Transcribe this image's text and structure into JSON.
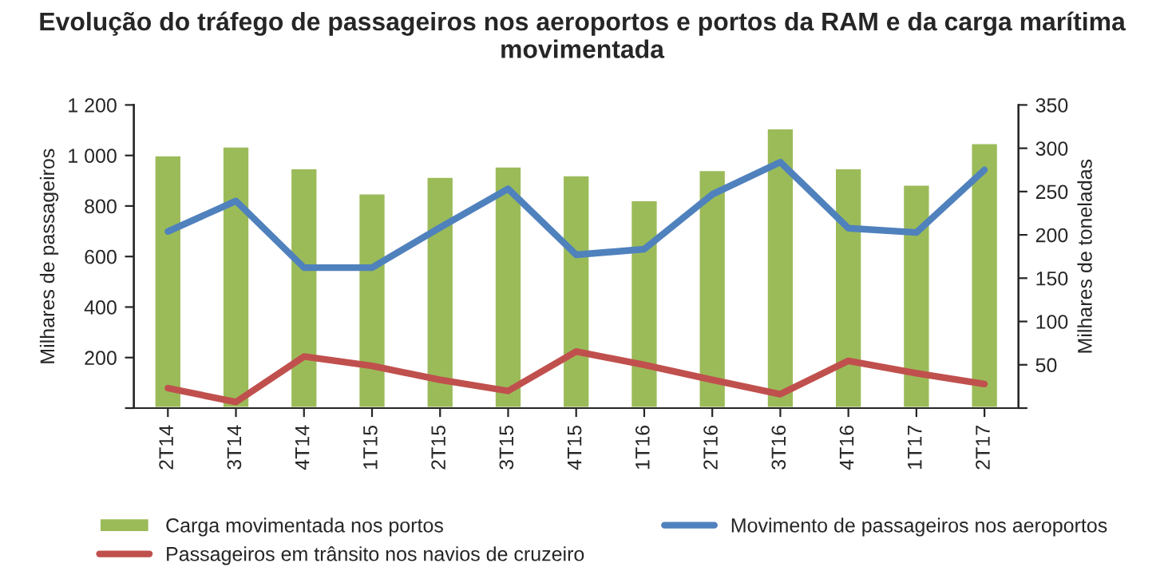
{
  "chart_data": {
    "type": "bar",
    "title": "Evolução do tráfego de passageiros nos aeroportos e portos da RAM e da carga marítima movimentada",
    "categories": [
      "2T14",
      "3T14",
      "4T14",
      "1T15",
      "2T15",
      "3T15",
      "4T15",
      "1T16",
      "2T16",
      "3T16",
      "4T16",
      "1T17",
      "2T17"
    ],
    "ylabel": "Milhares de passageiros",
    "y2label": "Milhares de toneladas",
    "ylim": [
      0,
      1200
    ],
    "yticks": [
      {
        "value": 0,
        "label": null
      },
      {
        "value": 200,
        "label": "200"
      },
      {
        "value": 400,
        "label": "400"
      },
      {
        "value": 600,
        "label": "600"
      },
      {
        "value": 800,
        "label": "800"
      },
      {
        "value": 1000,
        "label": "1 000"
      },
      {
        "value": 1200,
        "label": "1 200"
      }
    ],
    "y2lim": [
      0,
      350
    ],
    "y2ticks": [
      {
        "value": 0,
        "label": null
      },
      50,
      100,
      150,
      200,
      250,
      300,
      350
    ],
    "series": [
      {
        "name": "Carga movimentada nos portos",
        "axis": "y2",
        "color": "#9bbb59",
        "values": [
          292,
          302,
          277,
          248,
          267,
          279,
          269,
          240,
          275,
          323,
          277,
          258,
          306
        ]
      },
      {
        "name": "Movimento de passageiros nos aeroportos",
        "type": "line",
        "color": "#4f81bd",
        "values": [
          699,
          820,
          556,
          556,
          715,
          868,
          607,
          629,
          846,
          974,
          712,
          695,
          943
        ]
      },
      {
        "name": "Passageiros em trânsito nos navios de cruzeiro",
        "type": "line",
        "color": "#c0504d",
        "values": [
          79,
          24,
          204,
          167,
          112,
          68,
          224,
          171,
          112,
          55,
          187,
          138,
          95
        ]
      }
    ],
    "legend": "bottom",
    "grid": false
  }
}
